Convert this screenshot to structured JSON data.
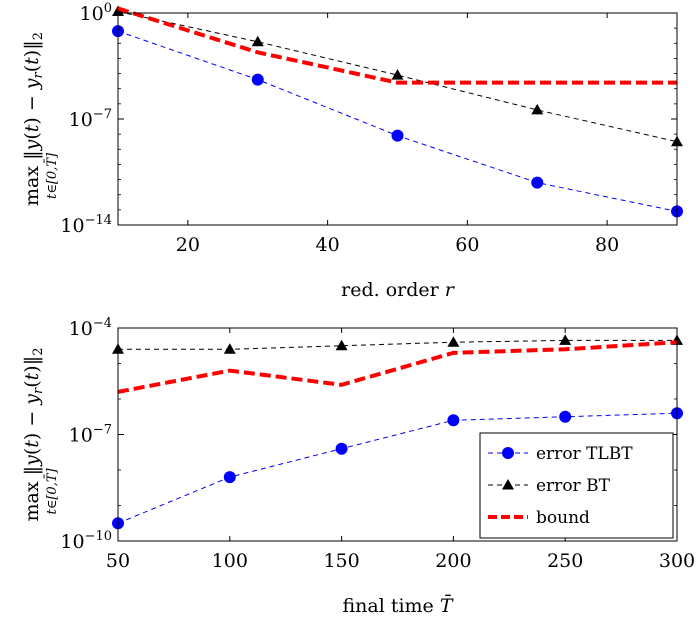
{
  "chart_data": [
    {
      "type": "line",
      "ylog": true,
      "xlim": [
        10,
        90
      ],
      "ylim_exp": [
        -14,
        0
      ],
      "xticks": [
        "20",
        "40",
        "60",
        "80"
      ],
      "xtick_values": [
        20,
        40,
        60,
        80
      ],
      "yticks": [
        "10",
        "10",
        "10"
      ],
      "ytick_exponents": [
        "0",
        "−7",
        "−14"
      ],
      "ytick_values_exp": [
        0,
        -7,
        -14
      ],
      "xlabel": "red. order",
      "xlabel_var": "r",
      "ylabel": "max ‖y(t) − y_r(t)‖₂ , t∈[0,T̄]",
      "series": [
        {
          "name": "error TLBT",
          "color": "#0000ff",
          "marker": "circle",
          "dash": "dashed",
          "x": [
            10,
            30,
            50,
            70,
            90
          ],
          "log10y": [
            -1.2,
            -4.4,
            -8.1,
            -11.2,
            -13.1
          ]
        },
        {
          "name": "error BT",
          "color": "#000000",
          "marker": "triangle",
          "dash": "dashed",
          "x": [
            10,
            30,
            50,
            70,
            90
          ],
          "log10y": [
            0.1,
            -1.9,
            -4.1,
            -6.4,
            -8.5
          ]
        },
        {
          "name": "bound",
          "color": "#ff0000",
          "marker": "none",
          "dash": "thick-dashed",
          "x": [
            10,
            30,
            50,
            90
          ],
          "log10y": [
            0.3,
            -2.6,
            -4.6,
            -4.6
          ]
        }
      ],
      "legend": null,
      "grid": false
    },
    {
      "type": "line",
      "ylog": true,
      "xlim": [
        50,
        300
      ],
      "ylim_exp": [
        -10,
        -4
      ],
      "xticks": [
        "50",
        "100",
        "150",
        "200",
        "250",
        "300"
      ],
      "xtick_values": [
        50,
        100,
        150,
        200,
        250,
        300
      ],
      "yticks": [
        "10",
        "10",
        "10"
      ],
      "ytick_exponents": [
        "−4",
        "−7",
        "−10"
      ],
      "ytick_values_exp": [
        -4,
        -7,
        -10
      ],
      "xlabel": "final time",
      "xlabel_var": "T̄",
      "ylabel": "max ‖y(t) − y_r(t)‖₂ , t∈[0,T̄]",
      "series": [
        {
          "name": "error TLBT",
          "color": "#0000ff",
          "marker": "circle",
          "dash": "dashed",
          "x": [
            50,
            100,
            150,
            200,
            250,
            300
          ],
          "log10y": [
            -9.5,
            -8.2,
            -7.4,
            -6.6,
            -6.5,
            -6.4
          ]
        },
        {
          "name": "error BT",
          "color": "#000000",
          "marker": "triangle",
          "dash": "dashed",
          "x": [
            50,
            100,
            150,
            200,
            250,
            300
          ],
          "log10y": [
            -4.6,
            -4.6,
            -4.5,
            -4.4,
            -4.35,
            -4.35
          ]
        },
        {
          "name": "bound",
          "color": "#ff0000",
          "marker": "none",
          "dash": "thick-dashed",
          "x": [
            50,
            100,
            150,
            200,
            250,
            300
          ],
          "log10y": [
            -5.8,
            -5.2,
            -5.6,
            -4.7,
            -4.6,
            -4.4
          ]
        }
      ],
      "legend": "bottom-right",
      "grid": false
    }
  ]
}
